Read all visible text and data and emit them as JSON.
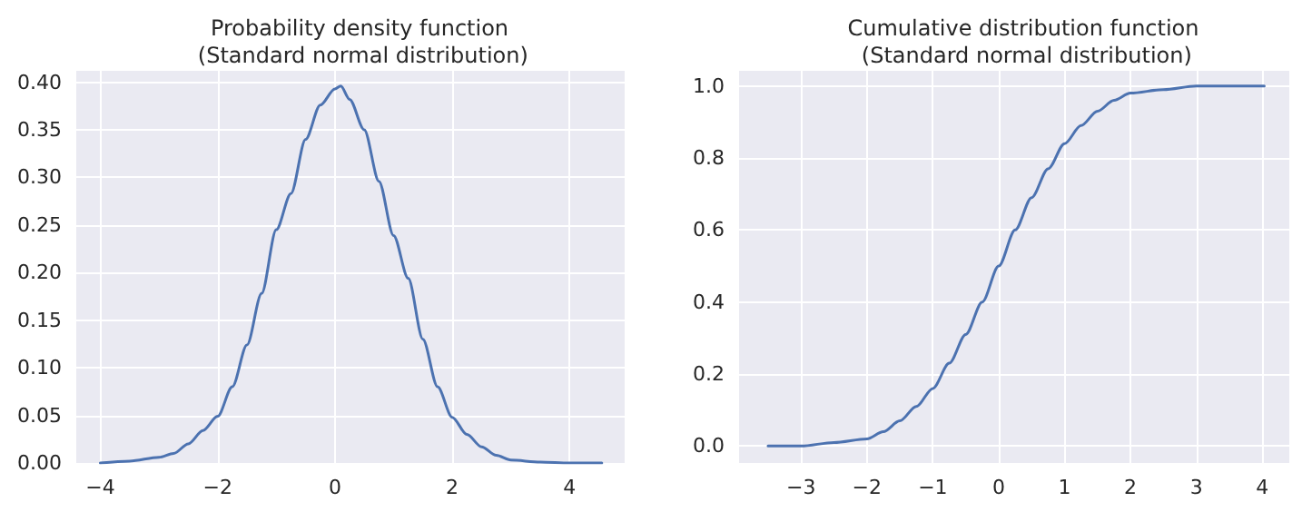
{
  "chart_data": [
    {
      "type": "line",
      "title": "Probability density function\n (Standard normal distribution)",
      "series": [
        {
          "color": "#4c72b0",
          "x": [
            -4.0,
            -3.5,
            -3.0,
            -2.75,
            -2.5,
            -2.25,
            -2.0,
            -1.75,
            -1.5,
            -1.25,
            -1.0,
            -0.75,
            -0.5,
            -0.25,
            0.0,
            0.1,
            0.25,
            0.5,
            0.75,
            1.0,
            1.25,
            1.5,
            1.75,
            2.0,
            2.25,
            2.5,
            2.75,
            3.0,
            3.5,
            4.0,
            4.55
          ],
          "values": [
            0.0,
            0.002,
            0.006,
            0.01,
            0.02,
            0.034,
            0.049,
            0.08,
            0.124,
            0.178,
            0.245,
            0.283,
            0.34,
            0.376,
            0.393,
            0.396,
            0.382,
            0.35,
            0.296,
            0.239,
            0.194,
            0.13,
            0.08,
            0.048,
            0.03,
            0.017,
            0.008,
            0.003,
            0.001,
            0.0,
            0.0
          ]
        }
      ],
      "xlim": [
        -4.41,
        4.94
      ],
      "ylim": [
        0,
        0.412
      ],
      "xticks": [
        {
          "value": -4,
          "label": "−4"
        },
        {
          "value": -2,
          "label": "−2"
        },
        0,
        2,
        4
      ],
      "yticks": [
        {
          "value": 0,
          "label": "0.00"
        },
        {
          "value": 0.05,
          "label": "0.05"
        },
        {
          "value": 0.1,
          "label": "0.10"
        },
        {
          "value": 0.15,
          "label": "0.15"
        },
        {
          "value": 0.2,
          "label": "0.20"
        },
        {
          "value": 0.25,
          "label": "0.25"
        },
        {
          "value": 0.3,
          "label": "0.30"
        },
        {
          "value": 0.35,
          "label": "0.35"
        },
        {
          "value": 0.4,
          "label": "0.40"
        }
      ],
      "grid": true,
      "marker": "none",
      "line_style": "solid"
    },
    {
      "type": "line",
      "title": "Cumulative distribution function\n (Standard normal distribution)",
      "series": [
        {
          "color": "#4c72b0",
          "x": [
            -3.5,
            -3,
            -2.5,
            -2,
            -1.75,
            -1.5,
            -1.25,
            -1,
            -0.75,
            -0.5,
            -0.25,
            0,
            0.25,
            0.5,
            0.75,
            1,
            1.25,
            1.5,
            1.75,
            2,
            2.5,
            3,
            3.5,
            4.03
          ],
          "values": [
            0.0,
            0.0,
            0.01,
            0.02,
            0.04,
            0.07,
            0.11,
            0.16,
            0.23,
            0.31,
            0.4,
            0.5,
            0.6,
            0.69,
            0.77,
            0.84,
            0.89,
            0.93,
            0.96,
            0.98,
            0.99,
            1.0,
            1.0,
            1.0
          ]
        }
      ],
      "xlim": [
        -3.94,
        4.41
      ],
      "ylim": [
        -0.047,
        1.042
      ],
      "xticks": [
        {
          "value": -3,
          "label": "−3"
        },
        {
          "value": -2,
          "label": "−2"
        },
        {
          "value": -1,
          "label": "−1"
        },
        0,
        1,
        2,
        3,
        4
      ],
      "yticks": [
        {
          "value": 0,
          "label": "0.0"
        },
        {
          "value": 0.2,
          "label": "0.2"
        },
        {
          "value": 0.4,
          "label": "0.4"
        },
        {
          "value": 0.6,
          "label": "0.6"
        },
        {
          "value": 0.8,
          "label": "0.8"
        },
        {
          "value": 1,
          "label": "1.0"
        }
      ],
      "grid": true,
      "marker": "none",
      "line_style": "solid"
    }
  ]
}
